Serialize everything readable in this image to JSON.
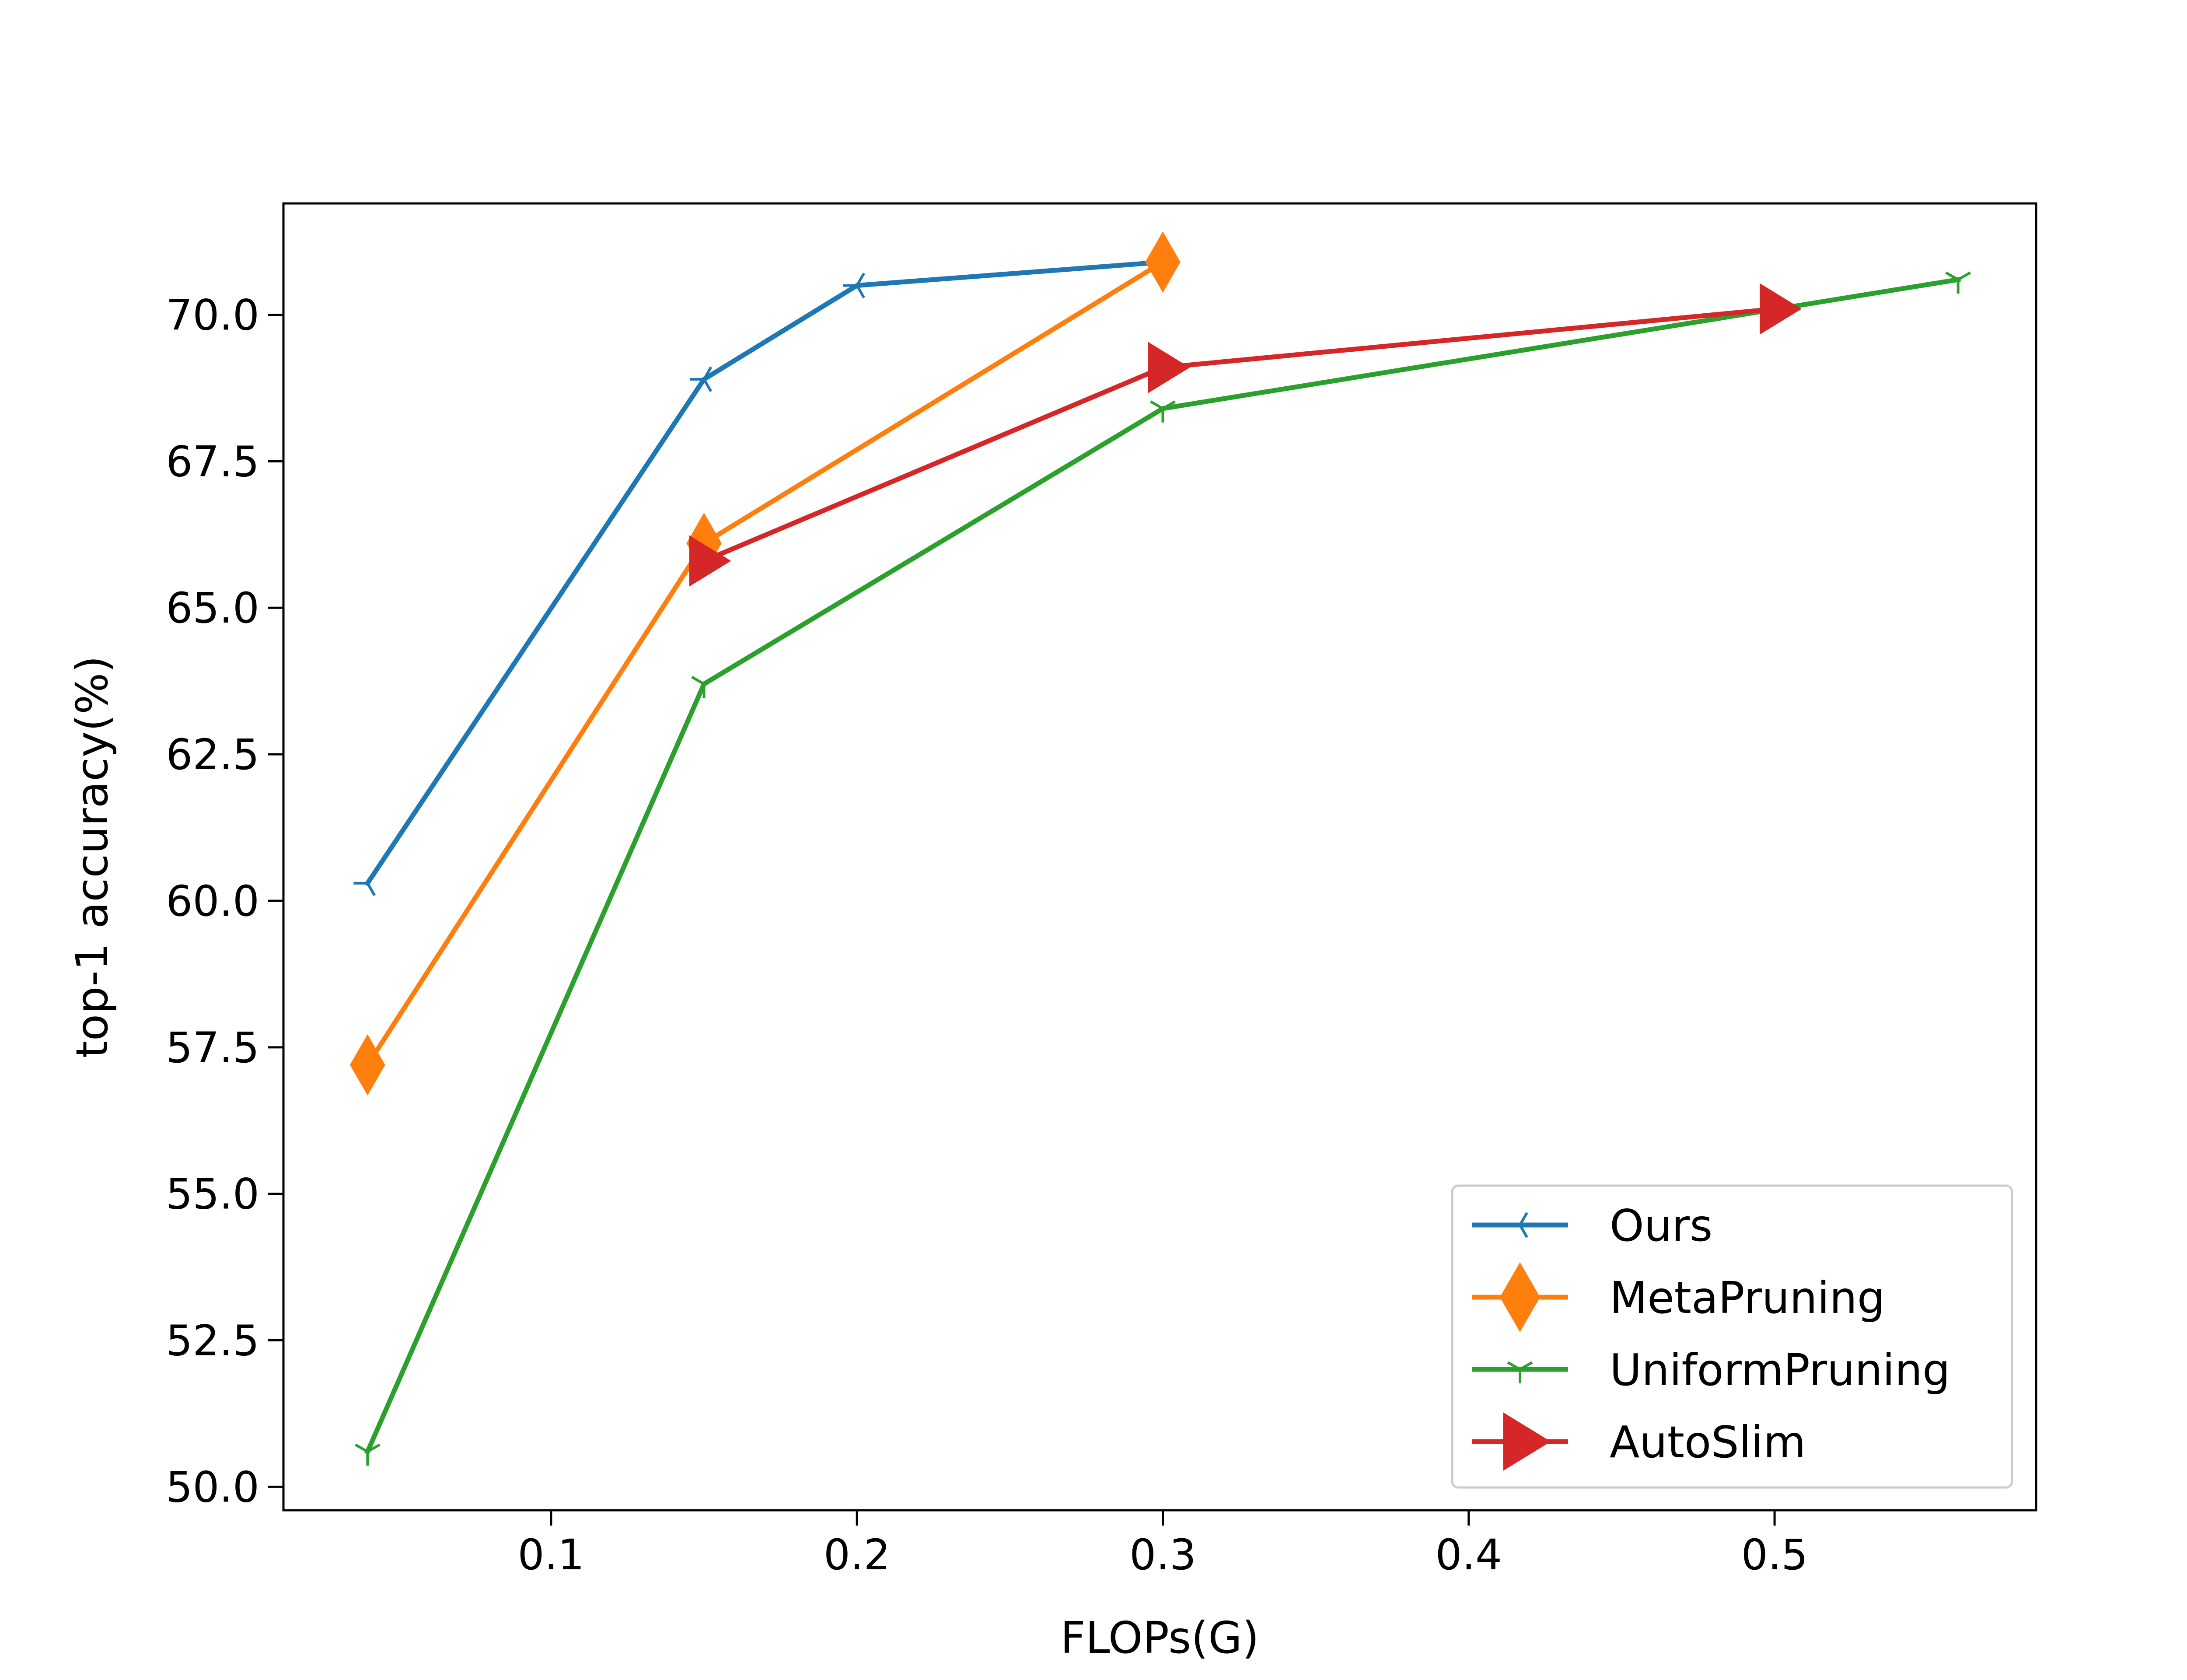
{
  "chart_data": {
    "type": "line",
    "xlabel": "FLOPs(G)",
    "ylabel": "top-1 accuracy(%)",
    "xlim": [
      0.0125,
      0.5855
    ],
    "ylim": [
      49.6,
      71.9
    ],
    "xticks": [
      "0.1",
      "0.2",
      "0.3",
      "0.4",
      "0.5"
    ],
    "xtick_values": [
      0.1,
      0.2,
      0.3,
      0.4,
      0.5
    ],
    "yticks": [
      "50.0",
      "52.5",
      "55.0",
      "57.5",
      "60.0",
      "62.5",
      "65.0",
      "67.5",
      "70.0"
    ],
    "ytick_values": [
      50.0,
      52.5,
      55.0,
      57.5,
      60.0,
      62.5,
      65.0,
      67.5,
      70.0
    ],
    "grid": false,
    "legend_position": "lower-right",
    "series": [
      {
        "name": "Ours",
        "color": "#1f77b4",
        "marker": "tri-left",
        "x": [
          0.04,
          0.15,
          0.2,
          0.3
        ],
        "y": [
          60.3,
          68.9,
          70.5,
          70.9
        ]
      },
      {
        "name": "MetaPruning",
        "color": "#ff7f0e",
        "marker": "diamond",
        "x": [
          0.04,
          0.15,
          0.3
        ],
        "y": [
          57.2,
          66.1,
          70.9
        ]
      },
      {
        "name": "UniformPruning",
        "color": "#2ca02c",
        "marker": "tri-down",
        "x": [
          0.04,
          0.15,
          0.3,
          0.56
        ],
        "y": [
          50.6,
          63.7,
          68.4,
          70.6
        ]
      },
      {
        "name": "AutoSlim",
        "color": "#d62728",
        "marker": "triangle-right",
        "x": [
          0.15,
          0.3,
          0.5
        ],
        "y": [
          65.8,
          69.1,
          70.1
        ]
      }
    ]
  }
}
